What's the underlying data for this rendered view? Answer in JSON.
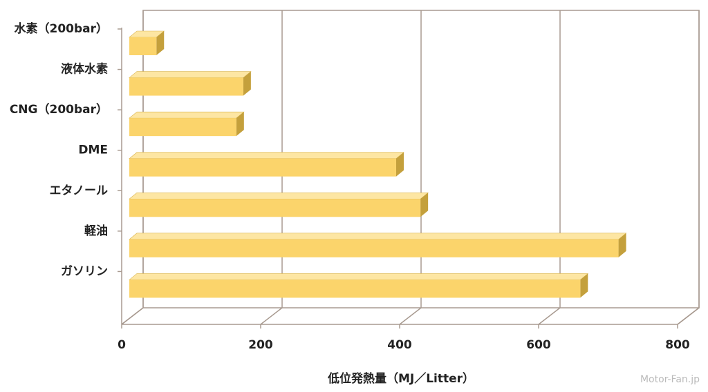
{
  "chart_data": {
    "type": "bar",
    "orientation": "horizontal",
    "x_label": "低位発熱量（MJ／Litter）",
    "categories": [
      "水素（200bar）",
      "液体水素",
      "CNG（200bar）",
      "DME",
      "エタノール",
      "軽油",
      "ガソリン"
    ],
    "values": [
      50,
      175,
      165,
      395,
      430,
      715,
      660
    ],
    "color": "#fbd46b",
    "xlim": [
      0,
      800
    ],
    "xticks": [
      0,
      200,
      400,
      600,
      800
    ],
    "grid": true,
    "watermark": "Motor-Fan.jp"
  }
}
